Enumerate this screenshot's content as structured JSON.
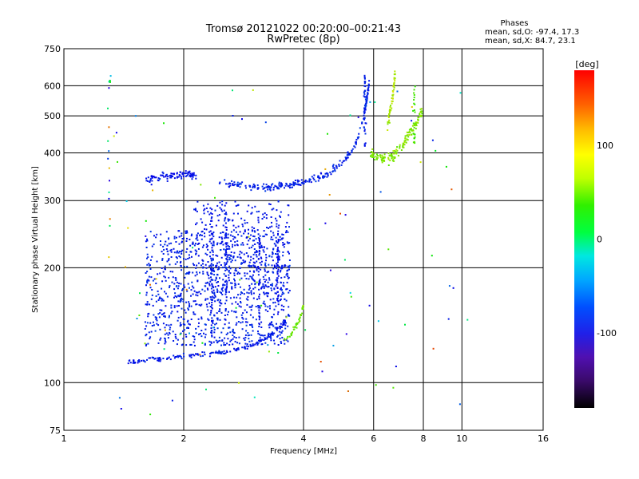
{
  "chart_data": {
    "type": "scatter",
    "title": "Tromsø 20121022 00:20:00–00:21:43",
    "subtitle": "RwPretec (8p)",
    "xlabel": "Frequency [MHz]",
    "ylabel": "Stationary phase Virtual Height [km]",
    "x_scale": "log",
    "y_scale": "log",
    "xlim": [
      1,
      16
    ],
    "ylim": [
      75,
      750
    ],
    "x_ticks": [
      1,
      2,
      4,
      6,
      8,
      10,
      16
    ],
    "x_tick_labels": [
      "1",
      "2",
      "4",
      "6",
      "8",
      "10",
      "16"
    ],
    "y_ticks": [
      75,
      100,
      200,
      300,
      400,
      500,
      600,
      750
    ],
    "y_tick_labels": [
      "75",
      "100",
      "200",
      "300",
      "400",
      "500",
      "600",
      "750"
    ],
    "grid": true,
    "phase_stats": {
      "header": "Phases",
      "o_line": "mean, sd,O: -97.4, 17.3",
      "x_line": "mean, sd,X:  84.7, 23.1"
    },
    "colorbar": {
      "label": "[deg]",
      "range": [
        -180,
        180
      ],
      "ticks": [
        100,
        0,
        -100
      ],
      "tick_labels": [
        "100",
        "0",
        "-100"
      ]
    },
    "series": [
      {
        "traces": [
          {
            "points": [
              [
                1.45,
                113
              ],
              [
                1.55,
                114
              ],
              [
                1.65,
                115
              ],
              [
                1.8,
                116
              ],
              [
                1.95,
                117
              ],
              [
                2.1,
                118
              ],
              [
                2.3,
                119
              ],
              [
                2.5,
                120
              ],
              [
                2.7,
                122
              ],
              [
                2.9,
                124
              ],
              [
                3.05,
                127
              ],
              [
                3.2,
                131
              ],
              [
                3.35,
                135
              ],
              [
                3.5,
                140
              ],
              [
                3.6,
                145
              ]
            ],
            "phase": -100,
            "jitter": 0.02,
            "count": 180
          },
          {
            "points": [
              [
                1.6,
                340
              ],
              [
                1.75,
                345
              ],
              [
                1.9,
                350
              ],
              [
                2.05,
                352
              ],
              [
                2.15,
                345
              ]
            ],
            "phase": -105,
            "jitter": 0.04,
            "count": 90
          },
          {
            "points": [
              [
                2.4,
                335
              ],
              [
                2.7,
                330
              ],
              [
                3.0,
                325
              ],
              [
                3.3,
                325
              ],
              [
                3.6,
                328
              ],
              [
                3.9,
                333
              ],
              [
                4.2,
                340
              ],
              [
                4.5,
                350
              ],
              [
                4.8,
                365
              ],
              [
                5.1,
                385
              ],
              [
                5.4,
                420
              ],
              [
                5.6,
                470
              ],
              [
                5.75,
                540
              ],
              [
                5.85,
                610
              ]
            ],
            "phase": -95,
            "jitter": 0.03,
            "count": 260
          },
          {
            "points": [
              [
                5.9,
                400
              ],
              [
                6.2,
                390
              ],
              [
                6.5,
                385
              ],
              [
                6.8,
                395
              ],
              [
                7.1,
                420
              ],
              [
                7.4,
                450
              ],
              [
                7.7,
                480
              ],
              [
                7.95,
                520
              ]
            ],
            "phase": 80,
            "jitter": 0.05,
            "count": 150
          },
          {
            "points": [
              [
                6.5,
                470
              ],
              [
                6.7,
                560
              ],
              [
                6.8,
                640
              ]
            ],
            "phase": 90,
            "jitter": 0.06,
            "count": 50
          },
          {
            "points": [
              [
                3.55,
                128
              ],
              [
                3.75,
                135
              ],
              [
                3.9,
                145
              ],
              [
                4.0,
                160
              ]
            ],
            "phase": 70,
            "jitter": 0.03,
            "count": 40
          }
        ],
        "clouds": [
          {
            "xr": [
              1.6,
              3.7
            ],
            "yr": [
              125,
              250
            ],
            "phase": -95,
            "count": 1000
          },
          {
            "xr": [
              2.1,
              3.7
            ],
            "yr": [
              170,
              300
            ],
            "phase": -100,
            "count": 300
          },
          {
            "xr": [
              1.3,
              10.5
            ],
            "yr": [
              80,
              650
            ],
            "phase": 0,
            "count": 100,
            "random_phase": true
          }
        ],
        "columns": [
          {
            "x": 2.35,
            "yr": [
              125,
              300
            ],
            "phase": -100,
            "count": 60
          },
          {
            "x": 2.55,
            "yr": [
              140,
              290
            ],
            "phase": -100,
            "count": 50
          },
          {
            "x": 3.1,
            "yr": [
              135,
              240
            ],
            "phase": -105,
            "count": 40
          },
          {
            "x": 3.45,
            "yr": [
              150,
              260
            ],
            "phase": -110,
            "count": 40
          },
          {
            "x": 1.3,
            "yr": [
              200,
              640
            ],
            "phase": 0,
            "count": 18,
            "random_phase": true
          },
          {
            "x": 5.7,
            "yr": [
              400,
              640
            ],
            "phase": -95,
            "count": 40
          },
          {
            "x": 7.6,
            "yr": [
              420,
              600
            ],
            "phase": 60,
            "count": 25
          }
        ]
      }
    ]
  }
}
